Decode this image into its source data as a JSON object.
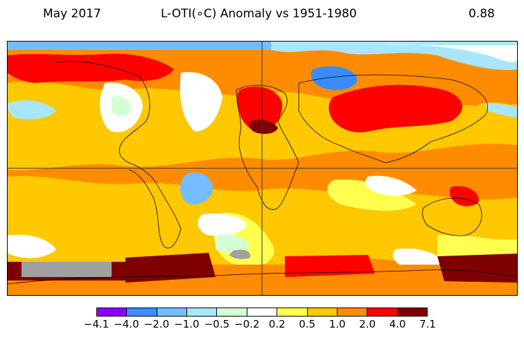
{
  "header": {
    "date": "May 2017",
    "title": "L-OTI(∘C) Anomaly vs 1951-1980",
    "global_mean": "0.88"
  },
  "colorbar": {
    "tick_labels": [
      "−4.1",
      "−4.0",
      "−2.0",
      "−1.0",
      "−0.5",
      "−0.2",
      "0.2",
      "0.5",
      "1.0",
      "2.0",
      "4.0",
      "7.1"
    ],
    "colors": [
      "#8b00ff",
      "#3c8cff",
      "#73beff",
      "#a8e6ff",
      "#d4ffd4",
      "#ffffff",
      "#ffff50",
      "#ffc800",
      "#ff8c00",
      "#ff0000",
      "#7f0000"
    ]
  },
  "map_colors": {
    "ocean_base": "#ff8c00",
    "missing_data": "#a0a0a0"
  }
}
